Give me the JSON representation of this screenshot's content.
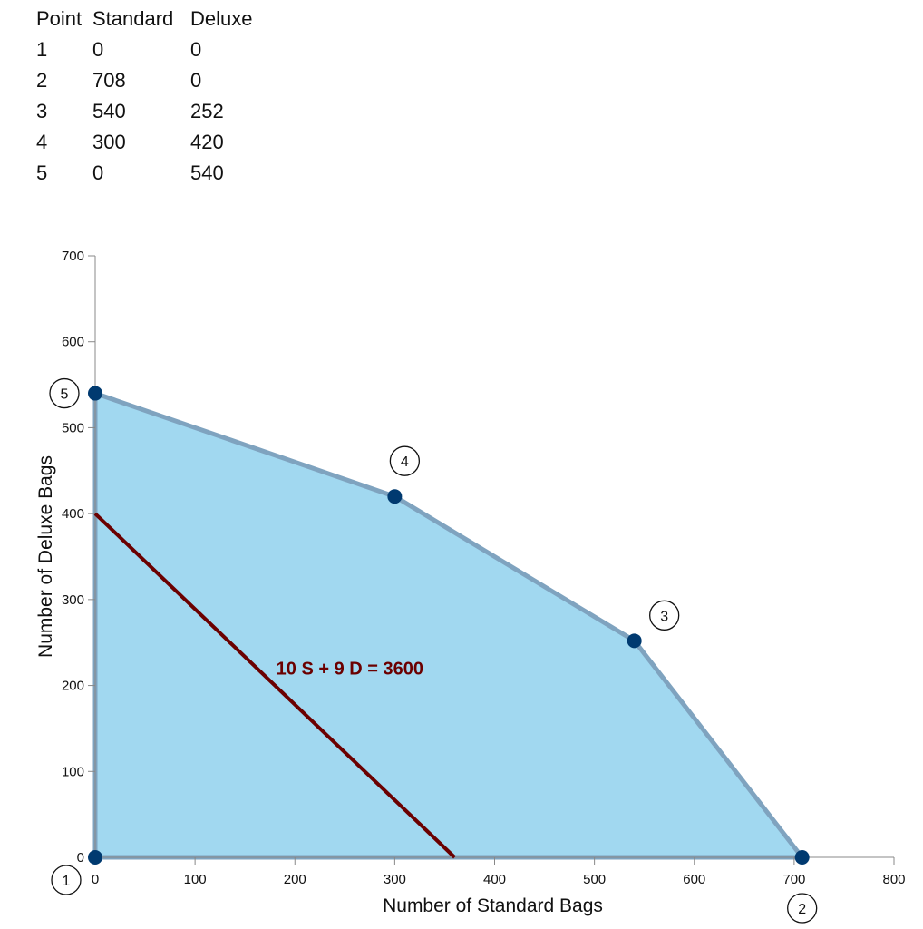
{
  "table": {
    "headers": [
      "Point",
      "Standard",
      "Deluxe"
    ],
    "rows": [
      [
        "1",
        "0",
        "0"
      ],
      [
        "2",
        "708",
        "0"
      ],
      [
        "3",
        "540",
        "252"
      ],
      [
        "4",
        "300",
        "420"
      ],
      [
        "5",
        "0",
        "540"
      ]
    ]
  },
  "colors": {
    "region_fill": "#a1d8f0",
    "region_stroke": "#7fa3bf",
    "point": "#003a70",
    "constraint": "#6b0000",
    "axis": "#888888"
  },
  "chart_data": {
    "type": "area",
    "title": "",
    "xlabel": "Number of Standard Bags",
    "ylabel": "Number of Deluxe Bags",
    "xlim": [
      0,
      800
    ],
    "ylim": [
      0,
      700
    ],
    "xticks": [
      "0",
      "100",
      "200",
      "300",
      "400",
      "500",
      "600",
      "700",
      "800"
    ],
    "yticks": [
      "0",
      "100",
      "200",
      "300",
      "400",
      "500",
      "600",
      "700"
    ],
    "feasible_region": [
      {
        "point": "1",
        "standard": 0,
        "deluxe": 0
      },
      {
        "point": "2",
        "standard": 708,
        "deluxe": 0
      },
      {
        "point": "3",
        "standard": 540,
        "deluxe": 252
      },
      {
        "point": "4",
        "standard": 300,
        "deluxe": 420
      },
      {
        "point": "5",
        "standard": 0,
        "deluxe": 540
      }
    ],
    "series": [
      {
        "name": "10 S + 9 D = 3600",
        "x": [
          0,
          360
        ],
        "y": [
          400,
          0
        ]
      }
    ],
    "annotations": [
      {
        "text": "10 S + 9 D = 3600",
        "x": 255,
        "y": 213
      }
    ]
  }
}
